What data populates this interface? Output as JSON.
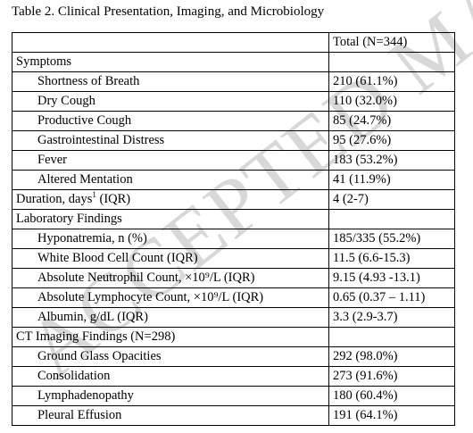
{
  "caption": "Table 2. Clinical Presentation, Imaging, and Microbiology",
  "watermark": "ACCEPTED MA",
  "header": {
    "label": "",
    "total": "Total (N=344)"
  },
  "rows": [
    {
      "label": "Symptoms",
      "value": "",
      "indent": false
    },
    {
      "label": "Shortness of Breath",
      "value": "210 (61.1%)",
      "indent": true
    },
    {
      "label": "Dry Cough",
      "value": "110 (32.0%)",
      "indent": true
    },
    {
      "label": "Productive Cough",
      "value": "85 (24.7%)",
      "indent": true
    },
    {
      "label": "Gastrointestinal Distress",
      "value": "95 (27.6%)",
      "indent": true
    },
    {
      "label": "Fever",
      "value": "183 (53.2%)",
      "indent": true
    },
    {
      "label": "Altered Mentation",
      "value": "41 (11.9%)",
      "indent": true
    },
    {
      "label": "Duration, days",
      "sup": "1",
      "label_suffix": " (IQR)",
      "value": "4 (2-7)",
      "indent": false
    },
    {
      "label": "Laboratory Findings",
      "value": "",
      "indent": false
    },
    {
      "label": "Hyponatremia, n (%)",
      "value": "185/335 (55.2%)",
      "indent": true
    },
    {
      "label": "White Blood Cell Count (IQR)",
      "value": "11.5 (6.6-15.3)",
      "indent": true
    },
    {
      "label": "Absolute Neutrophil Count, ×10⁹/L (IQR)",
      "value": "9.15 (4.93 -13.1)",
      "indent": true
    },
    {
      "label": "Absolute Lymphocyte Count, ×10⁹/L (IQR)",
      "value": "0.65 (0.37 – 1.11)",
      "indent": true
    },
    {
      "label": "Albumin, g/dL (IQR)",
      "value": "3.3 (2.9-3.7)",
      "indent": true
    },
    {
      "label": "CT Imaging Findings (N=298)",
      "value": "",
      "indent": false
    },
    {
      "label": "Ground Glass Opacities",
      "value": "292 (98.0%)",
      "indent": true
    },
    {
      "label": "Consolidation",
      "value": "273 (91.6%)",
      "indent": true
    },
    {
      "label": "Lymphadenopathy",
      "value": "180 (60.4%)",
      "indent": true
    },
    {
      "label": "Pleural Effusion",
      "value": "191 (64.1%)",
      "indent": true
    }
  ]
}
